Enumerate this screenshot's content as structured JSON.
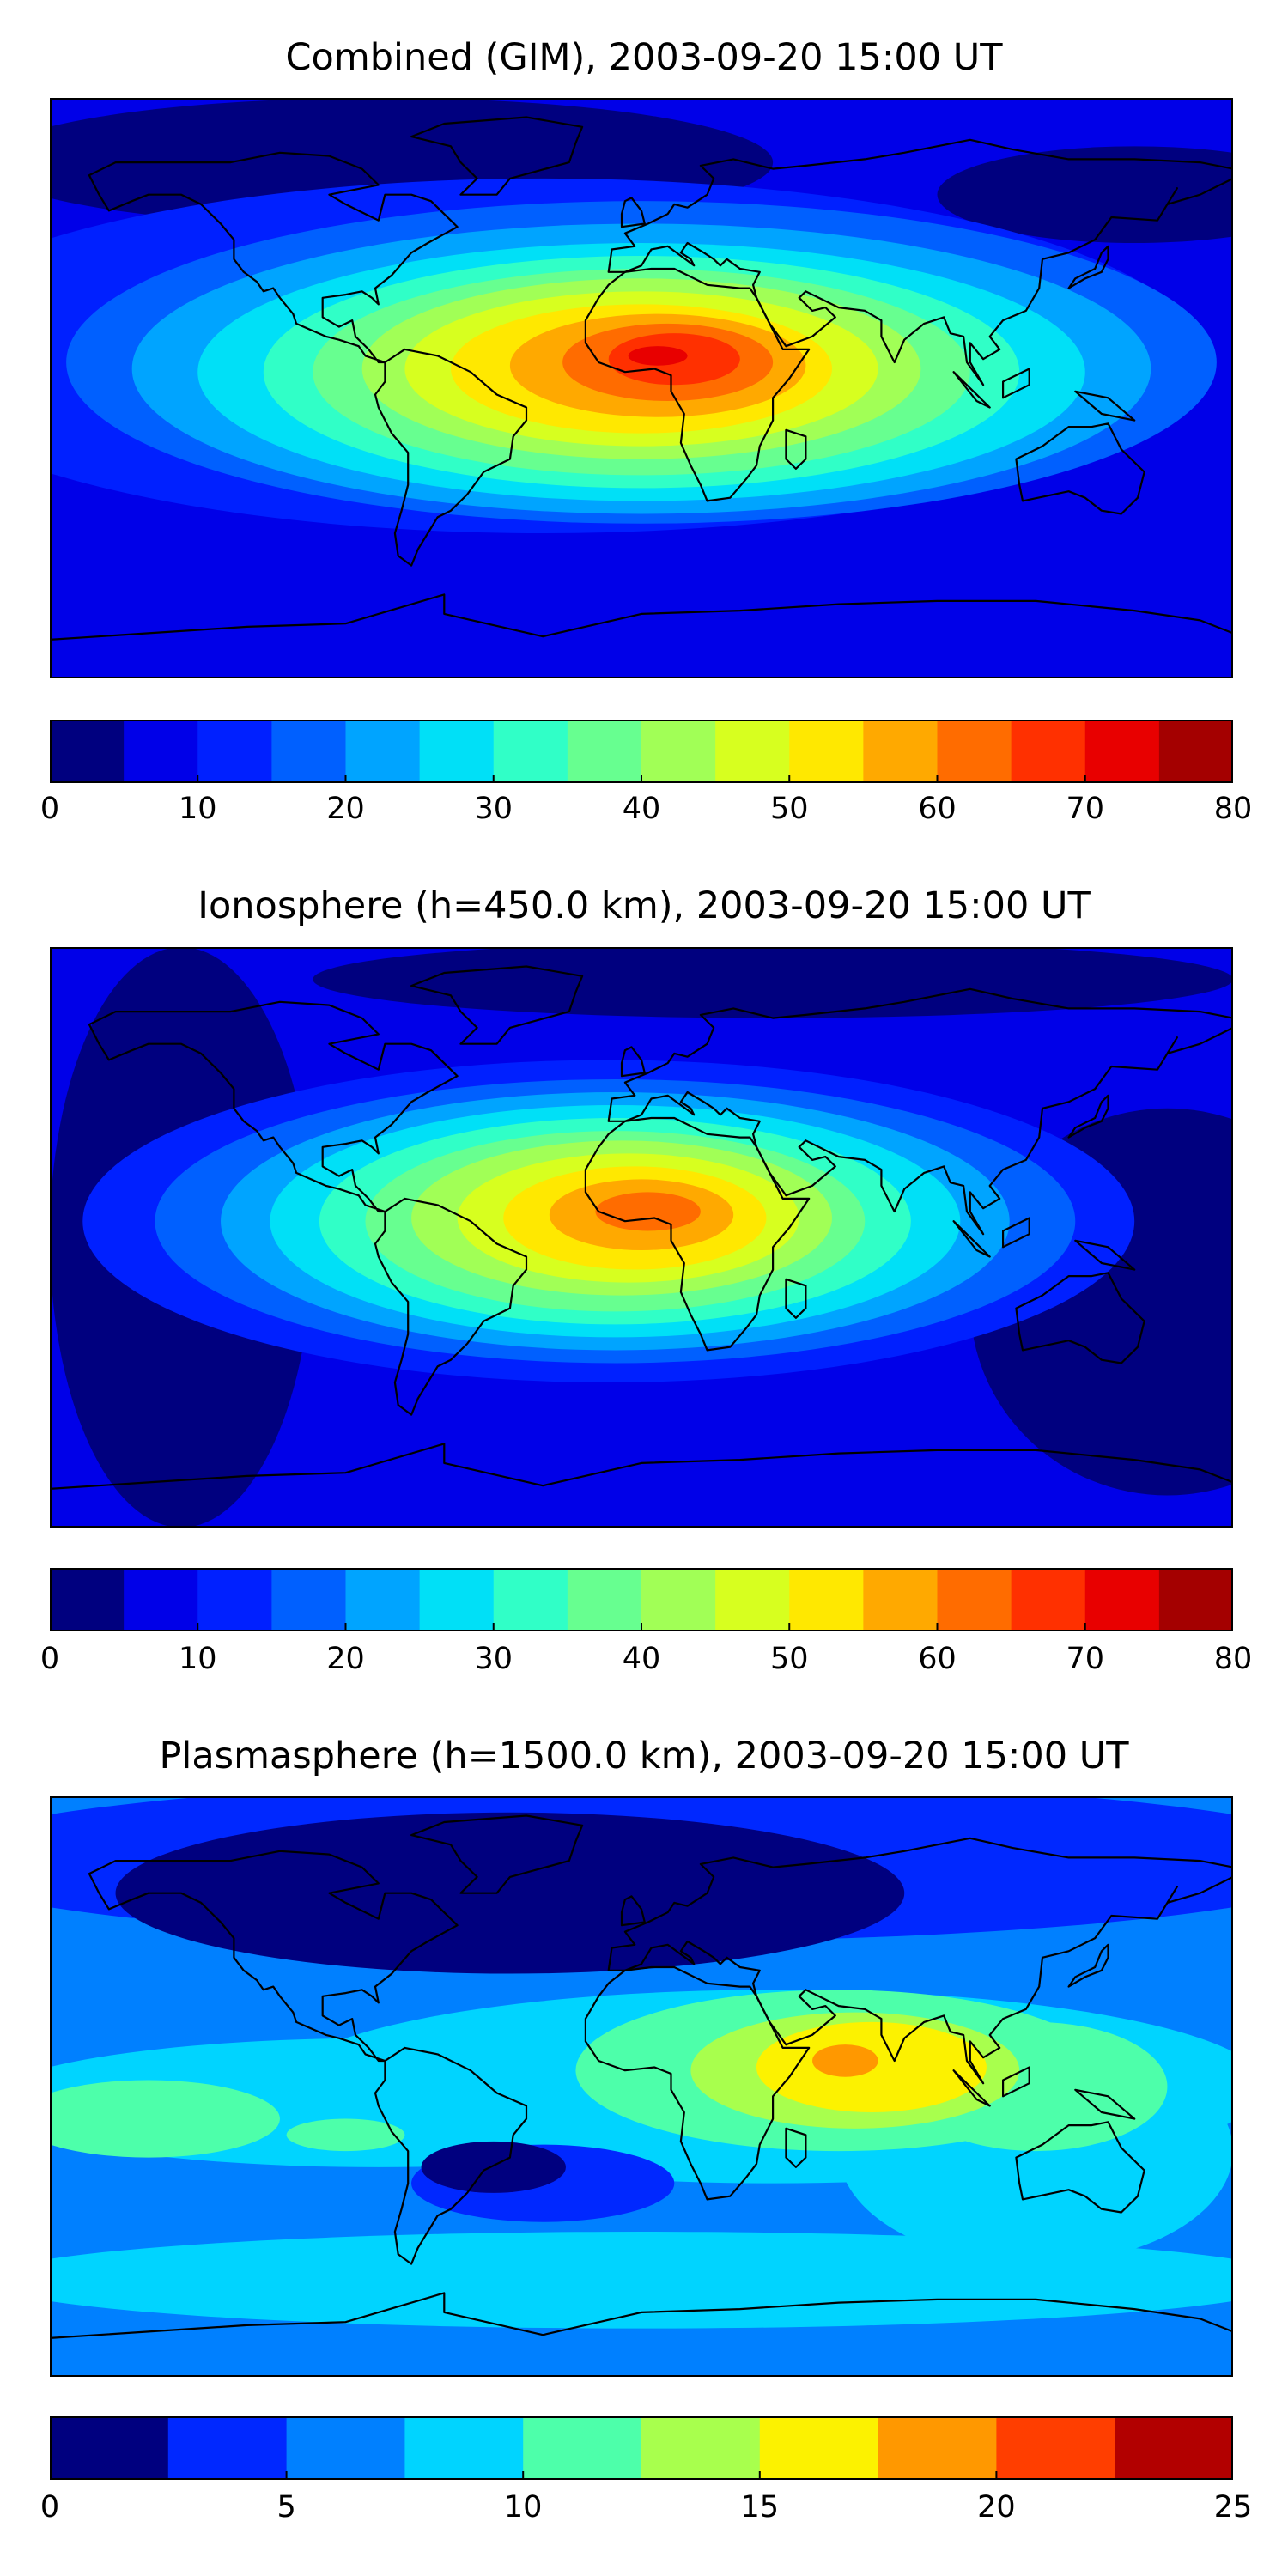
{
  "colors": {
    "palette_16": [
      "#00007f",
      "#0000e8",
      "#0020ff",
      "#0060ff",
      "#00a4ff",
      "#00e0f7",
      "#30ffc7",
      "#67ff90",
      "#a1ff56",
      "#d7ff1f",
      "#ffe800",
      "#ffa900",
      "#ff6c00",
      "#ff3000",
      "#e80000",
      "#a40000"
    ],
    "palette_10": [
      "#00007f",
      "#0028ff",
      "#0080ff",
      "#00d4ff",
      "#4dffaa",
      "#a8ff4d",
      "#fcf200",
      "#ff9800",
      "#ff3e00",
      "#b20000"
    ],
    "coastline": "#000000"
  },
  "panels": [
    {
      "id": "combined",
      "title": "Combined (GIM), 2003-09-20 15:00 UT",
      "colorbar": {
        "min": 0,
        "max": 80,
        "levels": 16,
        "tick_values": [
          0,
          10,
          20,
          30,
          40,
          50,
          60,
          70,
          80
        ],
        "tick_labels": [
          "0",
          "10",
          "20",
          "30",
          "40",
          "50",
          "60",
          "70",
          "80"
        ]
      },
      "field": {
        "background_level": 1,
        "blobs": [
          {
            "lon": -80,
            "lat": 70,
            "rx": 120,
            "ry": 20,
            "level": 0
          },
          {
            "lon": 150,
            "lat": 60,
            "rx": 60,
            "ry": 15,
            "level": 0
          },
          {
            "lon": -30,
            "lat": 10,
            "rx": 200,
            "ry": 55,
            "level": 2
          },
          {
            "lon": 0,
            "lat": 8,
            "rx": 175,
            "ry": 50,
            "level": 3
          },
          {
            "lon": 0,
            "lat": 6,
            "rx": 155,
            "ry": 45,
            "level": 4
          },
          {
            "lon": 0,
            "lat": 5,
            "rx": 135,
            "ry": 40,
            "level": 5
          },
          {
            "lon": 0,
            "lat": 5,
            "rx": 115,
            "ry": 36,
            "level": 6
          },
          {
            "lon": 0,
            "lat": 5,
            "rx": 100,
            "ry": 32,
            "level": 7
          },
          {
            "lon": 0,
            "lat": 6,
            "rx": 85,
            "ry": 28,
            "level": 8
          },
          {
            "lon": 0,
            "lat": 6,
            "rx": 72,
            "ry": 24,
            "level": 9
          },
          {
            "lon": 0,
            "lat": 6,
            "rx": 58,
            "ry": 20,
            "level": 10
          },
          {
            "lon": 5,
            "lat": 7,
            "rx": 45,
            "ry": 16,
            "level": 11
          },
          {
            "lon": 8,
            "lat": 8,
            "rx": 32,
            "ry": 12,
            "level": 12
          },
          {
            "lon": 10,
            "lat": 9,
            "rx": 20,
            "ry": 8,
            "level": 13
          },
          {
            "lon": 5,
            "lat": 10,
            "rx": 9,
            "ry": 3,
            "level": 14
          }
        ]
      }
    },
    {
      "id": "ionosphere",
      "title": "Ionosphere  (h=450.0 km), 2003-09-20 15:00 UT",
      "colorbar": {
        "min": 0,
        "max": 80,
        "levels": 16,
        "tick_values": [
          0,
          10,
          20,
          30,
          40,
          50,
          60,
          70,
          80
        ],
        "tick_labels": [
          "0",
          "10",
          "20",
          "30",
          "40",
          "50",
          "60",
          "70",
          "80"
        ]
      },
      "field": {
        "background_level": 1,
        "blobs": [
          {
            "lon": -140,
            "lat": 0,
            "rx": 40,
            "ry": 90,
            "level": 0
          },
          {
            "lon": 160,
            "lat": -20,
            "rx": 60,
            "ry": 60,
            "level": 0
          },
          {
            "lon": 40,
            "lat": 80,
            "rx": 140,
            "ry": 12,
            "level": 0
          },
          {
            "lon": -10,
            "lat": 5,
            "rx": 160,
            "ry": 50,
            "level": 2
          },
          {
            "lon": -8,
            "lat": 5,
            "rx": 140,
            "ry": 44,
            "level": 3
          },
          {
            "lon": -8,
            "lat": 5,
            "rx": 120,
            "ry": 40,
            "level": 4
          },
          {
            "lon": -8,
            "lat": 5,
            "rx": 105,
            "ry": 36,
            "level": 5
          },
          {
            "lon": -8,
            "lat": 5,
            "rx": 90,
            "ry": 32,
            "level": 6
          },
          {
            "lon": -8,
            "lat": 5,
            "rx": 76,
            "ry": 28,
            "level": 7
          },
          {
            "lon": -6,
            "lat": 6,
            "rx": 64,
            "ry": 24,
            "level": 8
          },
          {
            "lon": -4,
            "lat": 6,
            "rx": 52,
            "ry": 20,
            "level": 9
          },
          {
            "lon": -2,
            "lat": 6,
            "rx": 40,
            "ry": 16,
            "level": 10
          },
          {
            "lon": 0,
            "lat": 7,
            "rx": 28,
            "ry": 11,
            "level": 11
          },
          {
            "lon": 2,
            "lat": 8,
            "rx": 16,
            "ry": 6,
            "level": 12
          }
        ]
      }
    },
    {
      "id": "plasmasphere",
      "title": "Plasmasphere (h=1500.0 km), 2003-09-20 15:00 UT",
      "colorbar": {
        "min": 0,
        "max": 25,
        "levels": 10,
        "tick_values": [
          0,
          5,
          10,
          15,
          20,
          25
        ],
        "tick_labels": [
          "0",
          "5",
          "10",
          "15",
          "20",
          "25"
        ]
      },
      "field": {
        "background_level": 2,
        "blobs": [
          {
            "lon": 0,
            "lat": 70,
            "rx": 220,
            "ry": 25,
            "level": 1
          },
          {
            "lon": -40,
            "lat": 60,
            "rx": 120,
            "ry": 25,
            "level": 0
          },
          {
            "lon": -80,
            "lat": -5,
            "rx": 120,
            "ry": 20,
            "level": 3
          },
          {
            "lon": 40,
            "lat": 0,
            "rx": 150,
            "ry": 30,
            "level": 3
          },
          {
            "lon": 120,
            "lat": -20,
            "rx": 60,
            "ry": 35,
            "level": 3
          },
          {
            "lon": 0,
            "lat": -60,
            "rx": 200,
            "ry": 15,
            "level": 3
          },
          {
            "lon": -150,
            "lat": -10,
            "rx": 40,
            "ry": 12,
            "level": 4
          },
          {
            "lon": -90,
            "lat": -15,
            "rx": 18,
            "ry": 5,
            "level": 4
          },
          {
            "lon": 60,
            "lat": 5,
            "rx": 80,
            "ry": 25,
            "level": 4
          },
          {
            "lon": 120,
            "lat": 0,
            "rx": 40,
            "ry": 20,
            "level": 4
          },
          {
            "lon": 65,
            "lat": 5,
            "rx": 50,
            "ry": 18,
            "level": 5
          },
          {
            "lon": 70,
            "lat": 6,
            "rx": 35,
            "ry": 14,
            "level": 6
          },
          {
            "lon": 62,
            "lat": 8,
            "rx": 10,
            "ry": 5,
            "level": 7
          },
          {
            "lon": -30,
            "lat": -30,
            "rx": 40,
            "ry": 12,
            "level": 1
          },
          {
            "lon": -45,
            "lat": -25,
            "rx": 22,
            "ry": 8,
            "level": 0
          }
        ]
      }
    }
  ]
}
